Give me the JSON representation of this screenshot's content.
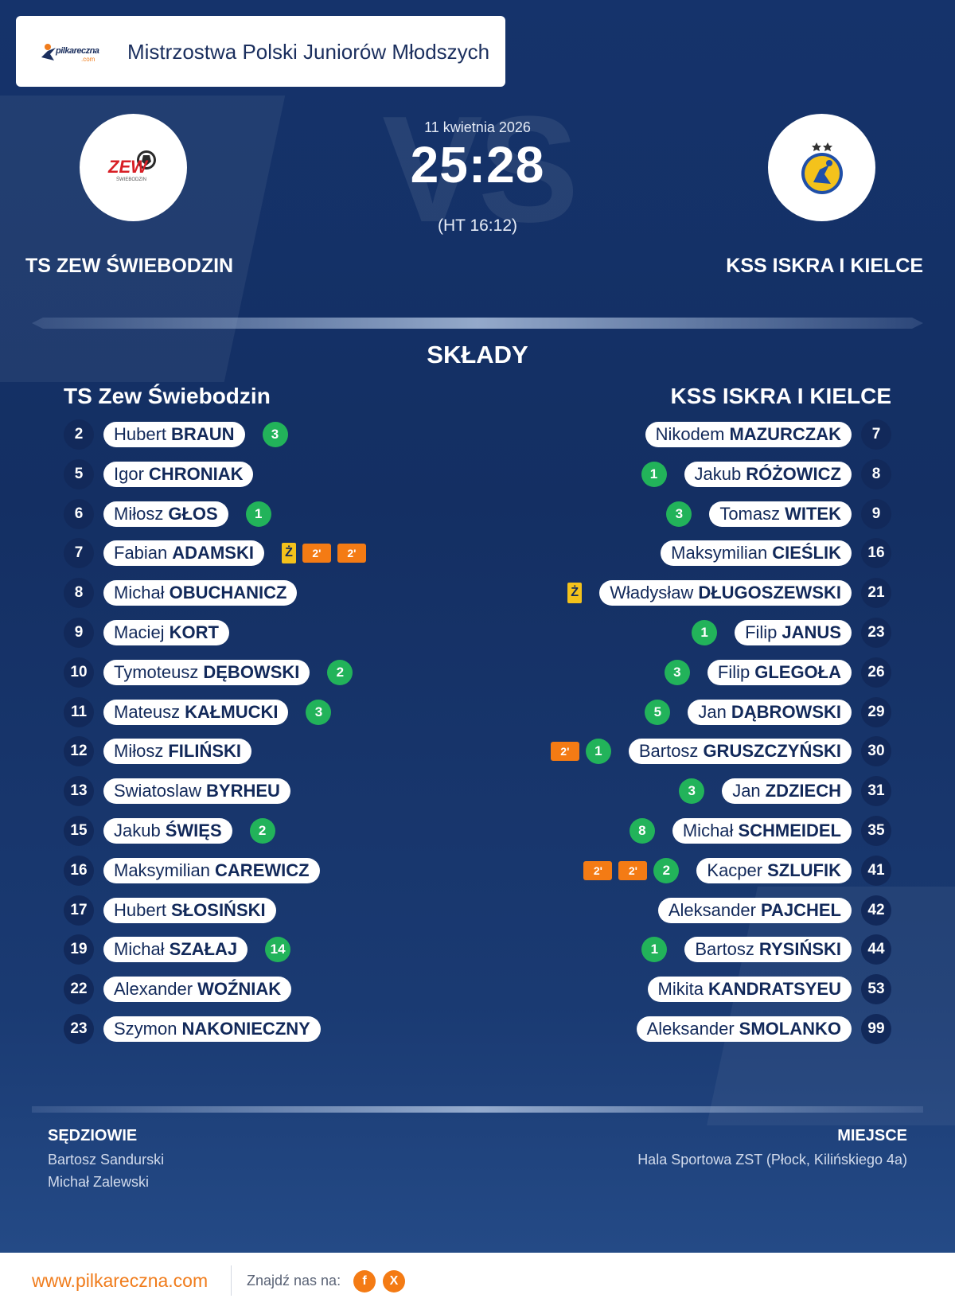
{
  "header": {
    "logo_text": "pilkareczna",
    "logo_sub": ".com",
    "title": "Mistrzostwa Polski Juniorów Młodszych"
  },
  "match": {
    "date": "11 kwietnia 2026",
    "score": "25:28",
    "halftime": "(HT 16:12)",
    "watermark": "VS"
  },
  "home": {
    "name": "TS ZEW ŚWIEBODZIN",
    "list_title": "TS Zew Świebodzin",
    "crest_text": "ZEW",
    "crest_sub": "ŚWIEBODZIN",
    "crest_color": "#d81f26",
    "players": [
      {
        "number": "2",
        "first": "Hubert",
        "last": "BRAUN",
        "goals": "3"
      },
      {
        "number": "5",
        "first": "Igor",
        "last": "CHRONIAK"
      },
      {
        "number": "6",
        "first": "Miłosz",
        "last": "GŁOS",
        "goals": "1"
      },
      {
        "number": "7",
        "first": "Fabian",
        "last": "ADAMSKI",
        "yellow": "Ż",
        "susp": [
          "2'",
          "2'"
        ]
      },
      {
        "number": "8",
        "first": "Michał",
        "last": "OBUCHANICZ"
      },
      {
        "number": "9",
        "first": "Maciej",
        "last": "KORT"
      },
      {
        "number": "10",
        "first": "Tymoteusz",
        "last": "DĘBOWSKI",
        "goals": "2"
      },
      {
        "number": "11",
        "first": "Mateusz",
        "last": "KAŁMUCKI",
        "goals": "3"
      },
      {
        "number": "12",
        "first": "Miłosz",
        "last": "FILIŃSKI"
      },
      {
        "number": "13",
        "first": "Swiatoslaw",
        "last": "BYRHEU"
      },
      {
        "number": "15",
        "first": "Jakub",
        "last": "ŚWIĘS",
        "goals": "2"
      },
      {
        "number": "16",
        "first": "Maksymilian",
        "last": "CAREWICZ"
      },
      {
        "number": "17",
        "first": "Hubert",
        "last": "SŁOSIŃSKI"
      },
      {
        "number": "19",
        "first": "Michał",
        "last": "SZAŁAJ",
        "goals": "14"
      },
      {
        "number": "22",
        "first": "Alexander",
        "last": "WOŹNIAK"
      },
      {
        "number": "23",
        "first": "Szymon",
        "last": "NAKONIECZNY"
      }
    ]
  },
  "away": {
    "name": "KSS ISKRA I KIELCE",
    "list_title": "KSS ISKRA I KIELCE",
    "crest_color": "#f4c21b",
    "crest_blue": "#1f4fa8",
    "players": [
      {
        "number": "7",
        "first": "Nikodem",
        "last": "MAZURCZAK"
      },
      {
        "number": "8",
        "first": "Jakub",
        "last": "RÓŻOWICZ",
        "goals": "1"
      },
      {
        "number": "9",
        "first": "Tomasz",
        "last": "WITEK",
        "goals": "3"
      },
      {
        "number": "16",
        "first": "Maksymilian",
        "last": "CIEŚLIK"
      },
      {
        "number": "21",
        "first": "Władysław",
        "last": "DŁUGOSZEWSKI",
        "yellow": "Ż"
      },
      {
        "number": "23",
        "first": "Filip",
        "last": "JANUS",
        "goals": "1"
      },
      {
        "number": "26",
        "first": "Filip",
        "last": "GLEGOŁA",
        "goals": "3"
      },
      {
        "number": "29",
        "first": "Jan",
        "last": "DĄBROWSKI",
        "goals": "5"
      },
      {
        "number": "30",
        "first": "Bartosz",
        "last": "GRUSZCZYŃSKI",
        "goals": "1",
        "susp": [
          "2'"
        ]
      },
      {
        "number": "31",
        "first": "Jan",
        "last": "ZDZIECH",
        "goals": "3"
      },
      {
        "number": "35",
        "first": "Michał",
        "last": "SCHMEIDEL",
        "goals": "8"
      },
      {
        "number": "41",
        "first": "Kacper",
        "last": "SZLUFIK",
        "goals": "2",
        "susp": [
          "2'",
          "2'"
        ]
      },
      {
        "number": "42",
        "first": "Aleksander",
        "last": "PAJCHEL"
      },
      {
        "number": "44",
        "first": "Bartosz",
        "last": "RYSIŃSKI",
        "goals": "1"
      },
      {
        "number": "53",
        "first": "Mikita",
        "last": "KANDRATSYEU"
      },
      {
        "number": "99",
        "first": "Aleksander",
        "last": "SMOLANKO"
      }
    ]
  },
  "lineups_title": "SKŁADY",
  "referees": {
    "label": "SĘDZIOWIE",
    "names": [
      "Bartosz Sandurski",
      "Michał Zalewski"
    ]
  },
  "venue": {
    "label": "MIEJSCE",
    "value": "Hala Sportowa ZST (Płock, Kilińskiego 4a)"
  },
  "footer": {
    "site": "www.pilkareczna.com",
    "find_us": "Znajdź nas na:",
    "facebook": "f",
    "x": "X"
  },
  "colors": {
    "background": "#15336b",
    "goals_badge": "#22b35a",
    "yellow_card": "#f4c21b",
    "suspension": "#f47b14",
    "accent": "#f07c1c"
  }
}
